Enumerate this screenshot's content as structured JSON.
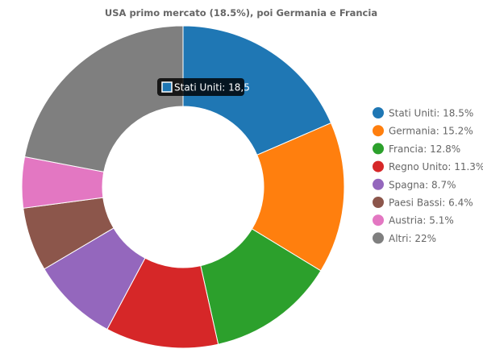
{
  "chart_data": {
    "type": "pie",
    "donut": true,
    "title": "USA primo mercato (18.5%), poi Germania e Francia",
    "legend_position": "right",
    "slices": [
      {
        "name": "Stati Uniti",
        "value": 18.5,
        "color": "#1f77b4",
        "legend_label": "Stati Uniti: 18.5%"
      },
      {
        "name": "Germania",
        "value": 15.2,
        "color": "#ff7f0e",
        "legend_label": "Germania: 15.2%"
      },
      {
        "name": "Francia",
        "value": 12.8,
        "color": "#2ca02c",
        "legend_label": "Francia: 12.8%"
      },
      {
        "name": "Regno Unito",
        "value": 11.3,
        "color": "#d62728",
        "legend_label": "Regno Unito: 11.3%"
      },
      {
        "name": "Spagna",
        "value": 8.7,
        "color": "#9467bd",
        "legend_label": "Spagna: 8.7%"
      },
      {
        "name": "Paesi Bassi",
        "value": 6.4,
        "color": "#8c564b",
        "legend_label": "Paesi Bassi: 6.4%"
      },
      {
        "name": "Austria",
        "value": 5.1,
        "color": "#e377c2",
        "legend_label": "Austria: 5.1%"
      },
      {
        "name": "Altri",
        "value": 22,
        "color": "#7f7f7f",
        "legend_label": "Altri: 22%"
      }
    ],
    "tooltip": {
      "slice": "Stati Uniti",
      "text": "Stati Uniti: 18,5"
    }
  }
}
